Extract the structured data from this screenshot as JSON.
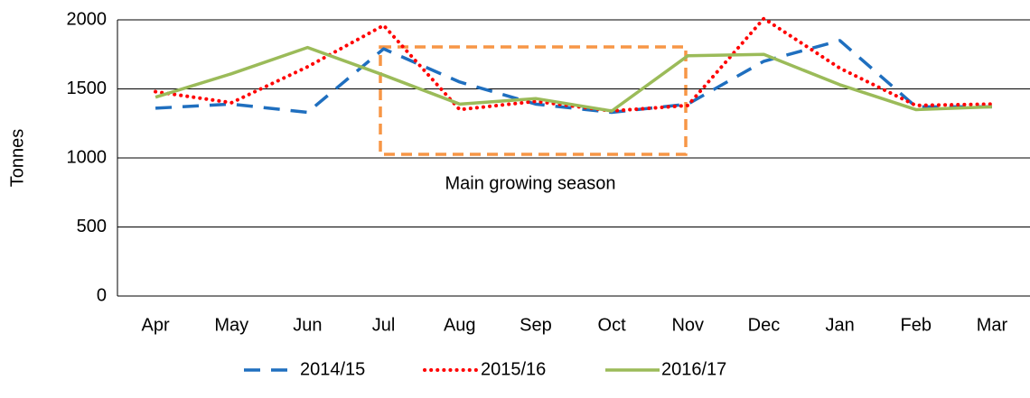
{
  "chart_data": {
    "type": "line",
    "y_label": "Tonnes",
    "annotation": "Main growing season",
    "categories": [
      "Apr",
      "May",
      "Jun",
      "Jul",
      "Aug",
      "Sep",
      "Oct",
      "Nov",
      "Dec",
      "Jan",
      "Feb",
      "Mar"
    ],
    "series": [
      {
        "name": "2014/15",
        "color": "#1f6fbf",
        "style": "dashed",
        "values": [
          1360,
          1390,
          1330,
          1790,
          1550,
          1390,
          1330,
          1390,
          1700,
          1850,
          1370,
          1370
        ]
      },
      {
        "name": "2015/16",
        "color": "#ff0000",
        "style": "dotted",
        "values": [
          1480,
          1400,
          1660,
          1960,
          1350,
          1410,
          1340,
          1380,
          2010,
          1650,
          1380,
          1390
        ]
      },
      {
        "name": "2016/17",
        "color": "#9bbb59",
        "style": "solid",
        "values": [
          1440,
          1610,
          1800,
          1600,
          1390,
          1430,
          1340,
          1740,
          1750,
          1530,
          1350,
          1370
        ]
      }
    ],
    "ylim": [
      0,
      2000
    ],
    "yticks": [
      0,
      500,
      1000,
      1500,
      2000
    ],
    "grid": true,
    "legend": "bottom"
  }
}
